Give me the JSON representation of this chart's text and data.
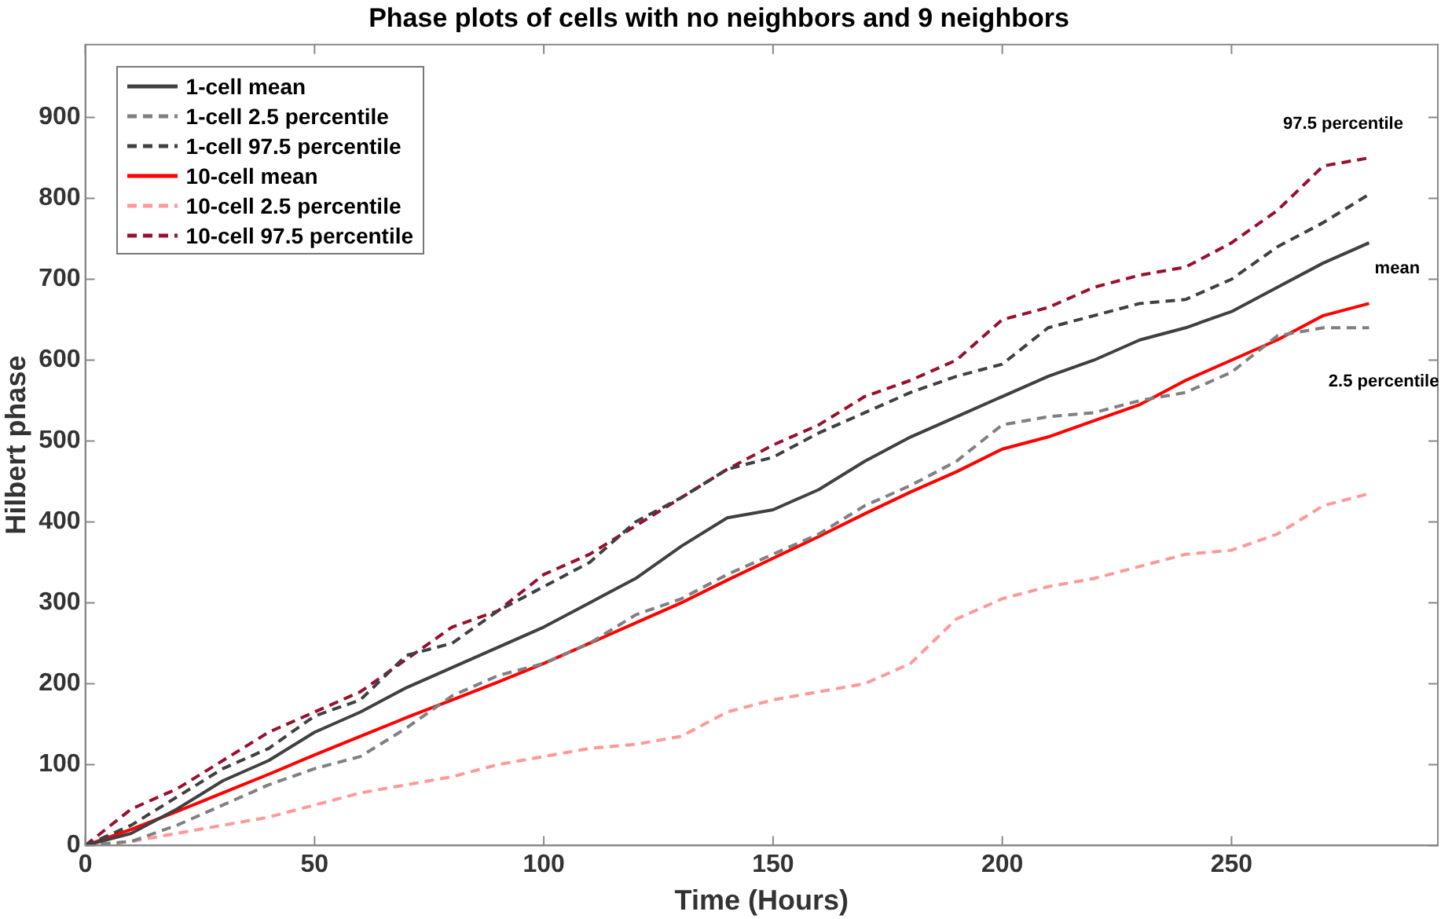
{
  "chart_data": {
    "type": "line",
    "title": "Phase plots of cells with no neighbors and 9 neighbors",
    "xlabel": "Time (Hours)",
    "ylabel": "Hilbert phase",
    "x": [
      0,
      10,
      20,
      30,
      40,
      50,
      60,
      70,
      80,
      90,
      100,
      110,
      120,
      130,
      140,
      150,
      160,
      170,
      180,
      190,
      200,
      210,
      220,
      230,
      240,
      250,
      260,
      270,
      280
    ],
    "series": [
      {
        "name": "1-cell mean",
        "color": "#404040",
        "line_style": "solid",
        "values": [
          0,
          15,
          45,
          80,
          105,
          140,
          165,
          195,
          220,
          245,
          270,
          300,
          330,
          370,
          405,
          415,
          440,
          475,
          505,
          530,
          555,
          580,
          600,
          625,
          640,
          660,
          690,
          720,
          745
        ]
      },
      {
        "name": "1-cell 2.5 percentile",
        "color": "#808080",
        "line_style": "dashed",
        "values": [
          0,
          5,
          25,
          50,
          75,
          95,
          110,
          145,
          185,
          210,
          225,
          250,
          285,
          305,
          335,
          360,
          385,
          420,
          445,
          475,
          520,
          530,
          535,
          550,
          560,
          585,
          630,
          640,
          640
        ]
      },
      {
        "name": "1-cell 97.5 percentile",
        "color": "#404040",
        "line_style": "dashed",
        "values": [
          0,
          25,
          60,
          95,
          120,
          160,
          180,
          235,
          250,
          290,
          320,
          350,
          400,
          430,
          465,
          480,
          510,
          535,
          560,
          580,
          595,
          640,
          655,
          670,
          675,
          700,
          740,
          770,
          805
        ]
      },
      {
        "name": "10-cell mean",
        "color": "#ff0000",
        "line_style": "solid",
        "values": [
          0,
          20,
          42,
          65,
          88,
          112,
          135,
          158,
          180,
          202,
          225,
          250,
          275,
          300,
          328,
          355,
          382,
          410,
          437,
          462,
          490,
          505,
          525,
          545,
          575,
          600,
          625,
          655,
          670
        ]
      },
      {
        "name": "10-cell 2.5 percentile",
        "color": "#ff9999",
        "line_style": "dashed",
        "values": [
          0,
          5,
          15,
          25,
          35,
          50,
          65,
          75,
          85,
          100,
          110,
          120,
          125,
          135,
          165,
          180,
          190,
          200,
          225,
          280,
          305,
          320,
          330,
          345,
          360,
          365,
          385,
          420,
          435
        ]
      },
      {
        "name": "10-cell 97.5 percentile",
        "color": "#990f2e",
        "line_style": "dashed",
        "values": [
          0,
          45,
          70,
          105,
          140,
          165,
          190,
          230,
          270,
          290,
          335,
          360,
          395,
          430,
          465,
          495,
          520,
          555,
          575,
          600,
          650,
          665,
          690,
          705,
          715,
          745,
          785,
          840,
          850
        ]
      }
    ],
    "xlim": [
      0,
      295
    ],
    "ylim": [
      0,
      990
    ],
    "xticks": [
      0,
      50,
      100,
      150,
      200,
      250
    ],
    "yticks": [
      0,
      100,
      200,
      300,
      400,
      500,
      600,
      700,
      800,
      900
    ],
    "grid": false,
    "legend": "top left",
    "marker": "none",
    "annotations": [
      "97.5 percentile",
      "mean",
      "2.5 percentile"
    ]
  }
}
